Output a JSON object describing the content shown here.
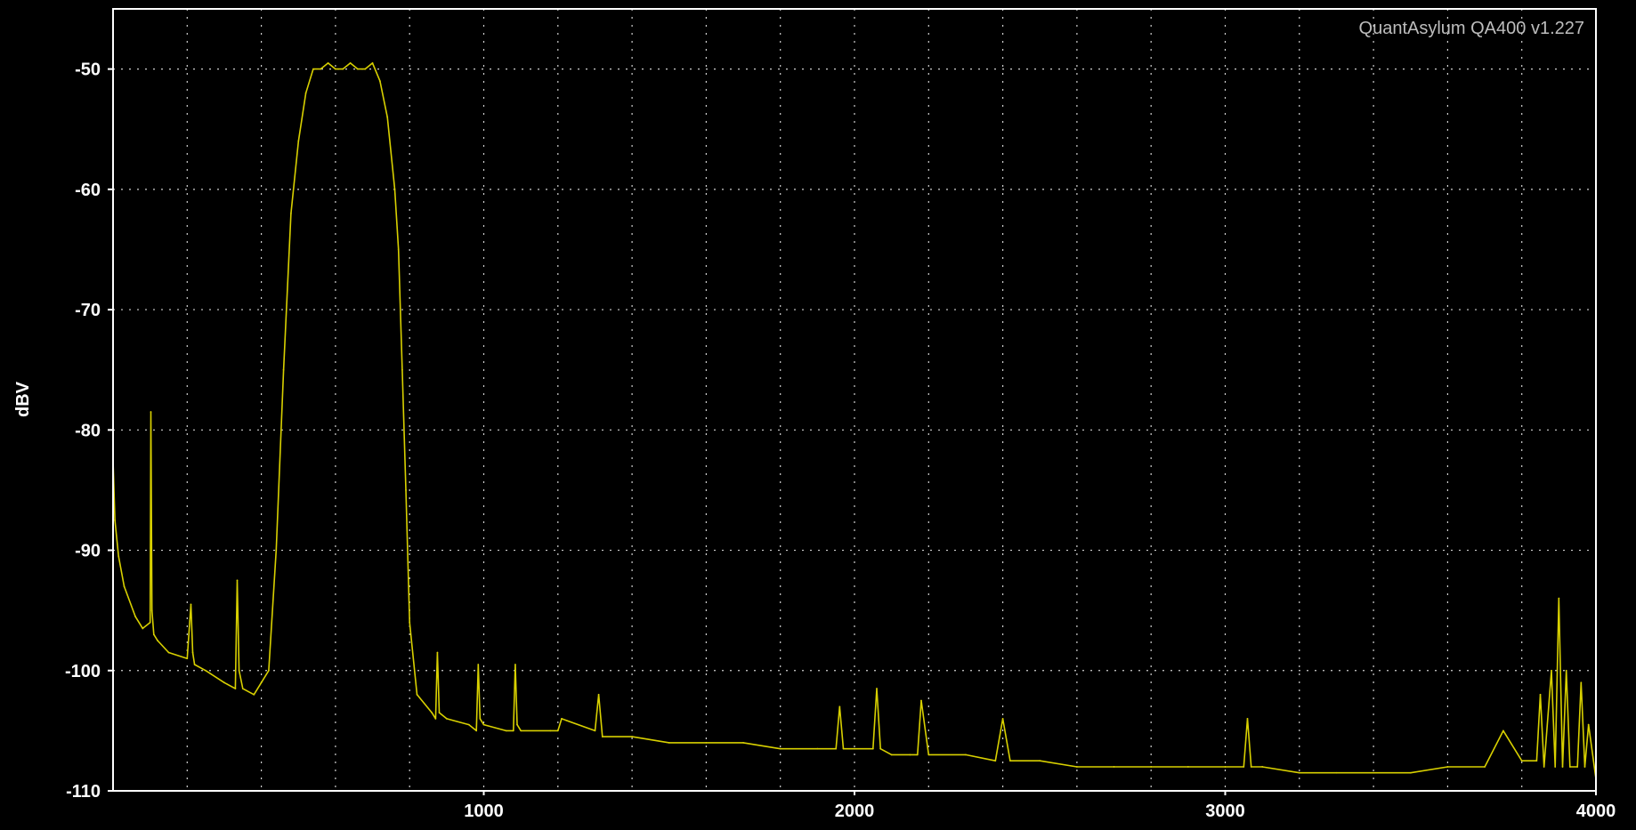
{
  "app": {
    "watermark": "QuantAsylum QA400 v1.227"
  },
  "colors": {
    "background": "#000000",
    "frame": "#ffffff",
    "grid": "#d0d0d0",
    "trace": "#d8d000",
    "text": "#ffffff"
  },
  "chart_data": {
    "type": "line",
    "title": "",
    "xlabel": "",
    "ylabel": "dBV",
    "xlim": [
      0,
      4000
    ],
    "ylim": [
      -110,
      -45
    ],
    "grid": true,
    "legend": "none",
    "x_ticks": [
      {
        "value": 1000,
        "label": "1000"
      },
      {
        "value": 2000,
        "label": "2000"
      },
      {
        "value": 3000,
        "label": "3000"
      },
      {
        "value": 4000,
        "label": "4000"
      }
    ],
    "x_minor_grid": [
      200,
      400,
      600,
      800,
      1200,
      1400,
      1600,
      1800,
      2200,
      2400,
      2600,
      2800,
      3200,
      3400,
      3600,
      3800
    ],
    "y_ticks": [
      {
        "value": -50,
        "label": "-50"
      },
      {
        "value": -60,
        "label": "-60"
      },
      {
        "value": -70,
        "label": "-70"
      },
      {
        "value": -80,
        "label": "-80"
      },
      {
        "value": -90,
        "label": "-90"
      },
      {
        "value": -100,
        "label": "-100"
      },
      {
        "value": -110,
        "label": "-110"
      }
    ],
    "series": [
      {
        "color": "#d8d000",
        "x": [
          0,
          5,
          15,
          30,
          60,
          80,
          100,
          102,
          105,
          110,
          120,
          150,
          200,
          210,
          215,
          220,
          250,
          300,
          330,
          335,
          340,
          350,
          380,
          400,
          420,
          440,
          460,
          480,
          500,
          520,
          540,
          560,
          580,
          600,
          620,
          640,
          660,
          680,
          700,
          720,
          740,
          760,
          770,
          780,
          790,
          800,
          820,
          860,
          870,
          875,
          880,
          900,
          960,
          980,
          985,
          990,
          1000,
          1060,
          1080,
          1085,
          1090,
          1100,
          1180,
          1200,
          1210,
          1300,
          1310,
          1320,
          1400,
          1500,
          1600,
          1700,
          1800,
          1900,
          1950,
          1960,
          1970,
          2000,
          2050,
          2060,
          2070,
          2100,
          2150,
          2170,
          2180,
          2200,
          2300,
          2380,
          2400,
          2420,
          2500,
          2600,
          2700,
          2800,
          2900,
          3000,
          3050,
          3060,
          3070,
          3100,
          3200,
          3300,
          3400,
          3500,
          3600,
          3700,
          3750,
          3800,
          3840,
          3850,
          3860,
          3880,
          3890,
          3900,
          3910,
          3920,
          3930,
          3950,
          3960,
          3970,
          3980,
          4000
        ],
        "y": [
          -82.5,
          -87.5,
          -90.5,
          -93,
          -95.5,
          -96.5,
          -96,
          -78.5,
          -95,
          -97,
          -97.5,
          -98.5,
          -99,
          -94.5,
          -98.5,
          -99.5,
          -100,
          -101,
          -101.5,
          -92.5,
          -100,
          -101.5,
          -102,
          -101,
          -100,
          -90,
          -75,
          -62,
          -56,
          -52,
          -50,
          -50,
          -49.5,
          -50,
          -50,
          -49.5,
          -50,
          -50,
          -49.5,
          -51,
          -54,
          -60,
          -65,
          -75,
          -85,
          -96,
          -102,
          -103.5,
          -104,
          -98.5,
          -103.5,
          -104,
          -104.5,
          -105,
          -99.5,
          -104,
          -104.5,
          -105,
          -105,
          -99.5,
          -104.5,
          -105,
          -105,
          -105,
          -104,
          -105,
          -102,
          -105.5,
          -105.5,
          -106,
          -106,
          -106,
          -106.5,
          -106.5,
          -106.5,
          -103,
          -106.5,
          -106.5,
          -106.5,
          -101.5,
          -106.5,
          -107,
          -107,
          -107,
          -102.5,
          -107,
          -107,
          -107.5,
          -104,
          -107.5,
          -107.5,
          -108,
          -108,
          -108,
          -108,
          -108,
          -108,
          -104,
          -108,
          -108,
          -108.5,
          -108.5,
          -108.5,
          -108.5,
          -108,
          -108,
          -105,
          -107.5,
          -107.5,
          -102,
          -108,
          -100,
          -108,
          -94,
          -108,
          -100,
          -108,
          -108,
          -101,
          -108,
          -104.5,
          -109
        ]
      }
    ]
  }
}
